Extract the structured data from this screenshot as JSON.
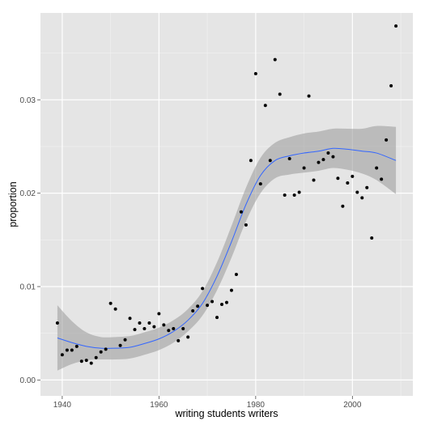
{
  "chart_data": {
    "type": "scatter",
    "title": "",
    "xlabel": "writing students writers",
    "ylabel": "proportion",
    "xlim": [
      1935.5,
      2012.5
    ],
    "ylim": [
      -0.0017,
      0.0393
    ],
    "x_ticks": [
      1940,
      1960,
      1980,
      2000
    ],
    "x_tick_labels": [
      "1940",
      "1960",
      "1980",
      "2000"
    ],
    "y_ticks": [
      0.0,
      0.01,
      0.02,
      0.03
    ],
    "y_tick_labels": [
      "0.00",
      "0.01",
      "0.02",
      "0.03"
    ],
    "grid": true,
    "legend": "none",
    "colors": {
      "panel": "#e5e5e5",
      "grid_major": "#ffffff",
      "grid_minor": "#f2f2f2",
      "points": "#000000",
      "smooth_line": "#3366ff",
      "ribbon": "#999999"
    },
    "points": {
      "x": [
        1939,
        1940,
        1941,
        1942,
        1943,
        1944,
        1945,
        1946,
        1947,
        1948,
        1949,
        1950,
        1951,
        1952,
        1953,
        1954,
        1955,
        1956,
        1957,
        1958,
        1959,
        1960,
        1961,
        1962,
        1963,
        1964,
        1965,
        1966,
        1967,
        1968,
        1969,
        1970,
        1971,
        1972,
        1973,
        1974,
        1975,
        1976,
        1977,
        1978,
        1979,
        1980,
        1981,
        1982,
        1983,
        1984,
        1985,
        1986,
        1987,
        1988,
        1989,
        1990,
        1991,
        1992,
        1993,
        1994,
        1995,
        1996,
        1997,
        1998,
        1999,
        2000,
        2001,
        2002,
        2003,
        2004,
        2005,
        2006,
        2007,
        2008,
        2009
      ],
      "y": [
        0.0061,
        0.0027,
        0.0032,
        0.0032,
        0.0036,
        0.002,
        0.0021,
        0.0018,
        0.0024,
        0.003,
        0.0033,
        0.0082,
        0.0076,
        0.0037,
        0.0043,
        0.0066,
        0.0054,
        0.0061,
        0.0055,
        0.0061,
        0.0057,
        0.0071,
        0.0059,
        0.0053,
        0.0055,
        0.0042,
        0.0055,
        0.0046,
        0.0074,
        0.0079,
        0.0098,
        0.008,
        0.0084,
        0.0067,
        0.0081,
        0.0083,
        0.0096,
        0.0113,
        0.018,
        0.0166,
        0.0235,
        0.0328,
        0.021,
        0.0294,
        0.0235,
        0.0343,
        0.0306,
        0.0198,
        0.0237,
        0.0198,
        0.0201,
        0.0227,
        0.0304,
        0.0214,
        0.0233,
        0.0236,
        0.0243,
        0.0239,
        0.0216,
        0.0186,
        0.0211,
        0.0218,
        0.0201,
        0.0195,
        0.0206,
        0.0152,
        0.0227,
        0.0215,
        0.0257,
        0.0315,
        0.0379
      ]
    },
    "smooth": {
      "x": [
        1939,
        1942,
        1945,
        1948,
        1951,
        1954,
        1957,
        1960,
        1963,
        1966,
        1969,
        1972,
        1975,
        1978,
        1981,
        1984,
        1987,
        1990,
        1993,
        1996,
        1999,
        2002,
        2005,
        2009
      ],
      "y": [
        0.0045,
        0.004,
        0.0036,
        0.0034,
        0.0034,
        0.0035,
        0.0039,
        0.0044,
        0.0052,
        0.0064,
        0.0082,
        0.0111,
        0.0148,
        0.0188,
        0.0219,
        0.0235,
        0.024,
        0.0243,
        0.0245,
        0.0248,
        0.0247,
        0.0245,
        0.0243,
        0.0235
      ],
      "lower": [
        0.001,
        0.0017,
        0.0021,
        0.0022,
        0.0022,
        0.0023,
        0.0027,
        0.0032,
        0.004,
        0.0052,
        0.0069,
        0.0096,
        0.0131,
        0.017,
        0.02,
        0.0216,
        0.022,
        0.0222,
        0.0224,
        0.0227,
        0.0225,
        0.0221,
        0.0214,
        0.0199
      ],
      "upper": [
        0.008,
        0.0063,
        0.0051,
        0.0046,
        0.0046,
        0.0047,
        0.0051,
        0.0056,
        0.0064,
        0.0076,
        0.0095,
        0.0126,
        0.0165,
        0.0206,
        0.0238,
        0.0254,
        0.026,
        0.0264,
        0.0266,
        0.0269,
        0.0269,
        0.0269,
        0.0272,
        0.0271
      ]
    }
  }
}
